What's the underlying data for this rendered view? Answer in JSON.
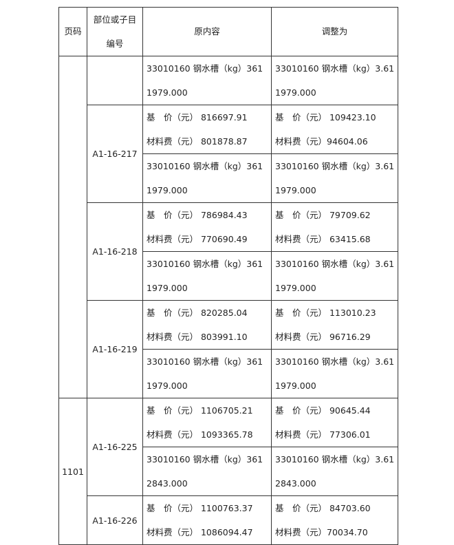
{
  "header": {
    "page": "页码",
    "code_line1": "部位或子目",
    "code_line2": "编号",
    "original": "原内容",
    "adjusted": "调整为"
  },
  "groups": [
    {
      "page": "",
      "items": [
        {
          "code": "",
          "rows": [
            {
              "orig": [
                "33010160 钢水槽（kg）361",
                "1979.000"
              ],
              "adj": [
                "33010160 钢水槽（kg）3.61",
                "1979.000"
              ]
            }
          ]
        },
        {
          "code": "A1-16-217",
          "rows": [
            {
              "orig": [
                "基　价（元）  816697.91",
                "材料费（元）  801878.87"
              ],
              "adj": [
                "基　价（元）  109423.10",
                "材料费（元）94604.06"
              ]
            },
            {
              "orig": [
                "33010160 钢水槽（kg）361",
                "1979.000"
              ],
              "adj": [
                "33010160 钢水槽（kg）3.61",
                "1979.000"
              ]
            }
          ]
        },
        {
          "code": "A1-16-218",
          "rows": [
            {
              "orig": [
                "基　价（元）  786984.43",
                "材料费（元）  770690.49"
              ],
              "adj": [
                "基　价（元）  79709.62",
                "材料费（元）  63415.68"
              ]
            },
            {
              "orig": [
                "33010160 钢水槽（kg）361",
                "1979.000"
              ],
              "adj": [
                "33010160 钢水槽（kg）3.61",
                "1979.000"
              ]
            }
          ]
        },
        {
          "code": "A1-16-219",
          "rows": [
            {
              "orig": [
                "基　价（元）  820285.04",
                "材料费（元）  803991.10"
              ],
              "adj": [
                "基　价（元）  113010.23",
                "材料费（元）  96716.29"
              ]
            },
            {
              "orig": [
                "33010160 钢水槽（kg）361",
                "1979.000"
              ],
              "adj": [
                "33010160 钢水槽（kg）3.61",
                "1979.000"
              ]
            }
          ]
        }
      ]
    },
    {
      "page": "1101",
      "items": [
        {
          "code": "A1-16-225",
          "rows": [
            {
              "orig": [
                "基　价（元）  1106705.21",
                "材料费（元）  1093365.78"
              ],
              "adj": [
                "基　价（元）  90645.44",
                "材料费（元）  77306.01"
              ]
            },
            {
              "orig": [
                "33010160 钢水槽（kg）361",
                "2843.000"
              ],
              "adj": [
                "33010160 钢水槽（kg）3.61",
                "2843.000"
              ]
            }
          ]
        },
        {
          "code": "A1-16-226",
          "rows": [
            {
              "orig": [
                "基　价（元）  1100763.37",
                "材料费（元）  1086094.47"
              ],
              "adj": [
                "基　价（元）  84703.60",
                "材料费（元）70034.70"
              ]
            }
          ]
        }
      ]
    }
  ]
}
